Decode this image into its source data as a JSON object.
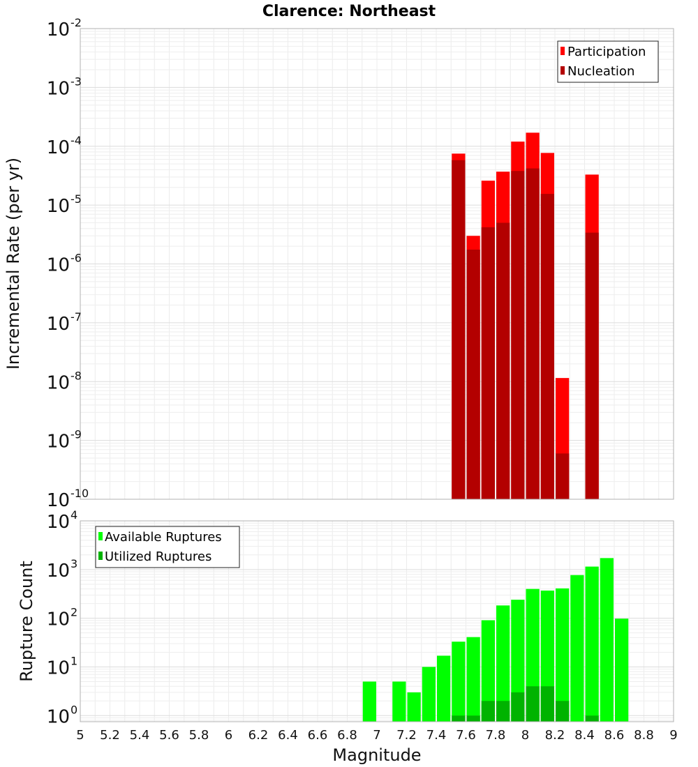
{
  "chart_data": [
    {
      "type": "bar",
      "title": "Clarence: Northeast",
      "xlabel": "Magnitude",
      "ylabel": "Incremental Rate (per yr)",
      "xlim": [
        5,
        9
      ],
      "ylim": [
        1e-10,
        0.01
      ],
      "yscale": "log",
      "grid": true,
      "legend_position": "top-right",
      "bin_width": 0.1,
      "x": [
        7.55,
        7.65,
        7.75,
        7.85,
        7.95,
        8.05,
        8.15,
        8.25,
        8.45
      ],
      "series": [
        {
          "name": "Participation",
          "color": "#ff0000",
          "values": [
            7.5e-05,
            3e-06,
            2.6e-05,
            3.7e-05,
            0.00012,
            0.00017,
            7.7e-05,
            1.15e-08,
            3.3e-05
          ]
        },
        {
          "name": "Nucleation",
          "color": "#b30000",
          "values": [
            5.8e-05,
            1.75e-06,
            4.2e-06,
            5e-06,
            3.8e-05,
            4.2e-05,
            1.55e-05,
            6e-10,
            3.4e-06
          ]
        }
      ],
      "y_ticks": [
        {
          "base": "10",
          "exp": "-10"
        },
        {
          "base": "10",
          "exp": "-9"
        },
        {
          "base": "10",
          "exp": "-8"
        },
        {
          "base": "10",
          "exp": "-7"
        },
        {
          "base": "10",
          "exp": "-6"
        },
        {
          "base": "10",
          "exp": "-5"
        },
        {
          "base": "10",
          "exp": "-4"
        },
        {
          "base": "10",
          "exp": "-3"
        },
        {
          "base": "10",
          "exp": "-2"
        }
      ]
    },
    {
      "type": "bar",
      "xlabel": "Magnitude",
      "ylabel": "Rupture Count",
      "xlim": [
        5,
        9
      ],
      "ylim": [
        0.75,
        10000
      ],
      "yscale": "log",
      "grid": true,
      "legend_position": "top-left",
      "bin_width": 0.1,
      "x_ticks": [
        "5",
        "5.2",
        "5.4",
        "5.6",
        "5.8",
        "6",
        "6.2",
        "6.4",
        "6.6",
        "6.8",
        "7",
        "7.2",
        "7.4",
        "7.6",
        "7.8",
        "8",
        "8.2",
        "8.4",
        "8.6",
        "8.8",
        "9"
      ],
      "x": [
        6.95,
        7.15,
        7.25,
        7.35,
        7.45,
        7.55,
        7.65,
        7.75,
        7.85,
        7.95,
        8.05,
        8.15,
        8.25,
        8.35,
        8.45,
        8.55,
        8.65
      ],
      "series": [
        {
          "name": "Available Ruptures",
          "color": "#00ff00",
          "values": [
            5,
            5,
            3,
            10,
            17,
            33,
            41,
            91,
            183,
            240,
            400,
            370,
            410,
            770,
            1150,
            1720,
            98
          ]
        },
        {
          "name": "Utilized Ruptures",
          "color": "#00b300",
          "values": [
            0,
            0,
            0,
            0,
            0,
            1,
            1,
            2,
            2,
            3,
            4,
            4,
            2,
            0,
            1,
            0,
            0
          ]
        }
      ],
      "y_ticks": [
        {
          "base": "10",
          "exp": "0"
        },
        {
          "base": "10",
          "exp": "1"
        },
        {
          "base": "10",
          "exp": "2"
        },
        {
          "base": "10",
          "exp": "3"
        },
        {
          "base": "10",
          "exp": "4"
        }
      ]
    }
  ]
}
